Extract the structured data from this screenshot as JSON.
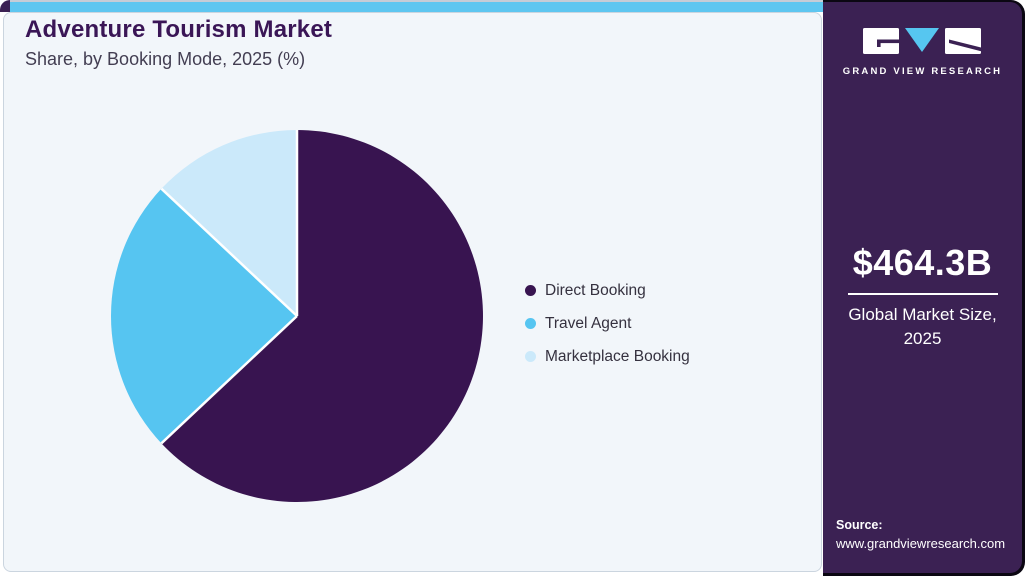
{
  "header": {
    "title": "Adventure Tourism Market",
    "subtitle": "Share, by Booking Mode, 2025 (%)"
  },
  "chart_data": {
    "type": "pie",
    "title": "Adventure Tourism Market Share, by Booking Mode, 2025 (%)",
    "unit": "%",
    "categories": [
      "Direct Booking",
      "Travel Agent",
      "Marketplace Booking"
    ],
    "values": [
      63,
      24,
      13
    ],
    "colors": [
      "#381450",
      "#56C5F1",
      "#CBE9FA"
    ],
    "start_angle_deg": 0,
    "direction": "clockwise",
    "legend_position": "right",
    "slice_separator_color": "#FFFFFF"
  },
  "sidebar": {
    "brand_name": "GRAND VIEW RESEARCH",
    "market_size": "$464.3B",
    "market_caption": "Global Market Size, 2025",
    "source_label": "Source:",
    "source_url": "www.grandviewresearch.com"
  },
  "colors": {
    "accent_bar": "#5EC6F0",
    "sidebar_bg": "#3B2153",
    "panel_bg": "#F2F6FA",
    "title_text": "#3A1656",
    "logo_triangle": "#56C6F0"
  }
}
